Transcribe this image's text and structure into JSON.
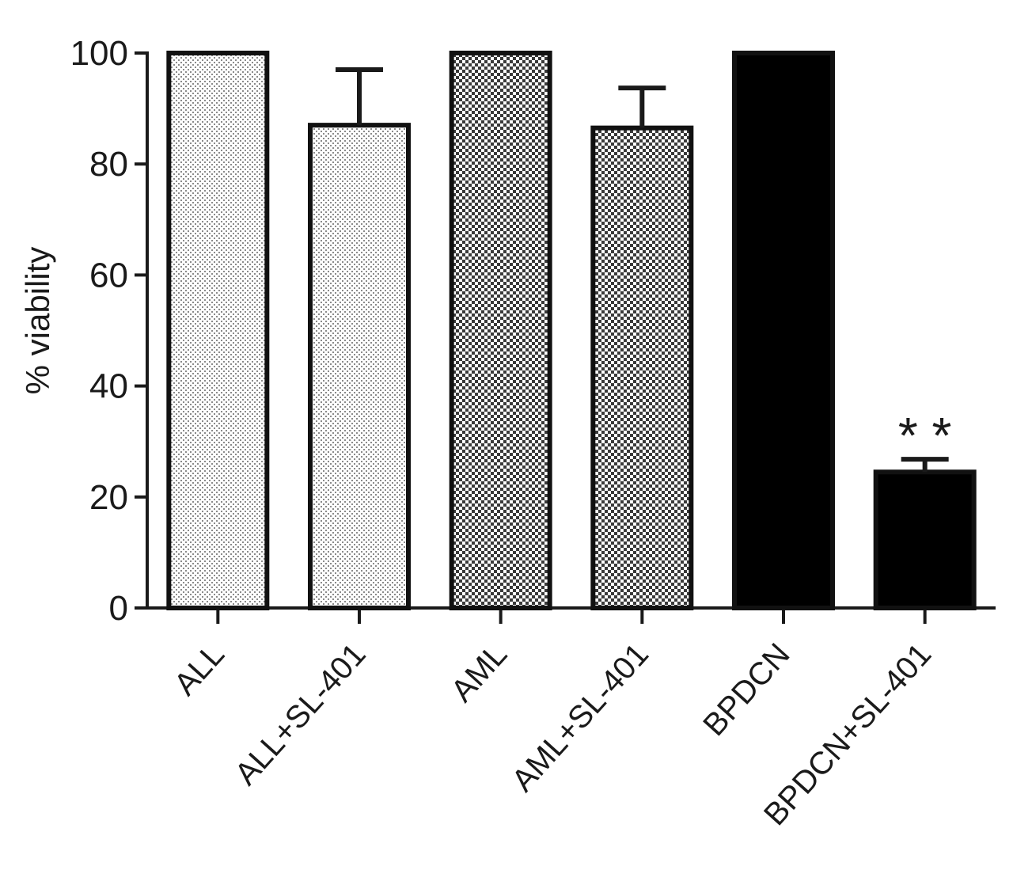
{
  "chart_data": {
    "type": "bar",
    "title": "",
    "xlabel": "",
    "ylabel": "% viability",
    "ylim": [
      0,
      100
    ],
    "yticks": [
      0,
      20,
      40,
      60,
      80,
      100
    ],
    "grid": false,
    "legend": "none",
    "categories": [
      "ALL",
      "ALL+SL-401",
      "AML",
      "AML+SL-401",
      "BPDCN",
      "BPDCN+SL-401"
    ],
    "values": [
      100,
      87,
      100,
      86.5,
      100,
      24.5
    ],
    "errors": [
      0,
      10,
      0,
      7.2,
      0,
      2.3
    ],
    "fills": [
      "light-dots",
      "light-dots",
      "checker",
      "checker",
      "solid-black",
      "solid-black"
    ],
    "annotations": [
      {
        "category": "BPDCN+SL-401",
        "text": "* *"
      }
    ],
    "colors": {
      "axis": "#1a1a1a",
      "bar_edge": "#111111",
      "solid": "#000000"
    }
  }
}
